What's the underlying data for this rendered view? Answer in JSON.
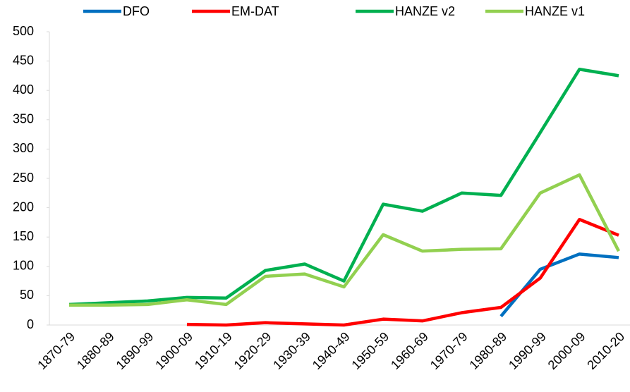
{
  "chart_data": {
    "type": "line",
    "categories": [
      "1870-79",
      "1880-89",
      "1890-99",
      "1900-09",
      "1910-19",
      "1920-29",
      "1930-39",
      "1940-49",
      "1950-59",
      "1960-69",
      "1970-79",
      "1980-89",
      "1990-99",
      "2000-09",
      "2010-20"
    ],
    "series": [
      {
        "name": "DFO",
        "color": "#0070c0",
        "values": [
          null,
          null,
          null,
          null,
          null,
          null,
          null,
          null,
          null,
          null,
          null,
          15,
          95,
          121,
          115
        ]
      },
      {
        "name": "EM-DAT",
        "color": "#ff0000",
        "values": [
          null,
          null,
          null,
          1,
          0,
          4,
          2,
          0,
          10,
          7,
          21,
          30,
          80,
          180,
          153
        ]
      },
      {
        "name": "HANZE v2",
        "color": "#00b050",
        "values": [
          35,
          38,
          41,
          47,
          46,
          93,
          104,
          75,
          206,
          194,
          225,
          221,
          328,
          436,
          425
        ]
      },
      {
        "name": "HANZE v1",
        "color": "#92d050",
        "values": [
          34,
          34,
          35,
          43,
          35,
          83,
          87,
          65,
          154,
          126,
          129,
          130,
          225,
          256,
          126
        ]
      }
    ],
    "ylim": [
      0,
      500
    ],
    "yticks": [
      0,
      50,
      100,
      150,
      200,
      250,
      300,
      350,
      400,
      450,
      500
    ],
    "grid": false,
    "legend": "top"
  }
}
